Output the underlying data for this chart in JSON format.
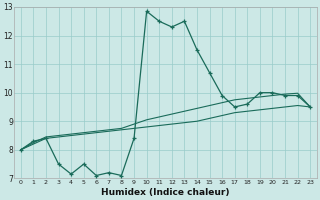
{
  "xlabel": "Humidex (Indice chaleur)",
  "background_color": "#cce8e6",
  "grid_color": "#99ccca",
  "line_color": "#1a6b5a",
  "xlim": [
    -0.5,
    23.5
  ],
  "ylim": [
    7,
    13
  ],
  "xticks": [
    0,
    1,
    2,
    3,
    4,
    5,
    6,
    7,
    8,
    9,
    10,
    11,
    12,
    13,
    14,
    15,
    16,
    17,
    18,
    19,
    20,
    21,
    22,
    23
  ],
  "yticks": [
    7,
    8,
    9,
    10,
    11,
    12,
    13
  ],
  "line1_x": [
    0,
    1,
    2,
    3,
    4,
    5,
    6,
    7,
    8,
    9,
    10,
    11,
    12,
    13,
    14,
    15,
    16,
    17,
    18,
    19,
    20,
    21,
    22,
    23
  ],
  "line1_y": [
    8.0,
    8.2,
    8.4,
    8.45,
    8.5,
    8.55,
    8.6,
    8.65,
    8.7,
    8.75,
    8.8,
    8.85,
    8.9,
    8.95,
    9.0,
    9.1,
    9.2,
    9.3,
    9.35,
    9.4,
    9.45,
    9.5,
    9.55,
    9.5
  ],
  "line2_x": [
    0,
    1,
    2,
    3,
    4,
    5,
    6,
    7,
    8,
    9,
    10,
    11,
    12,
    13,
    14,
    15,
    16,
    17,
    18,
    19,
    20,
    21,
    22,
    23
  ],
  "line2_y": [
    8.0,
    8.25,
    8.45,
    8.5,
    8.55,
    8.6,
    8.65,
    8.7,
    8.75,
    8.9,
    9.05,
    9.15,
    9.25,
    9.35,
    9.45,
    9.55,
    9.65,
    9.75,
    9.8,
    9.85,
    9.9,
    9.95,
    9.98,
    9.5
  ],
  "curve_x": [
    0,
    1,
    2,
    3,
    4,
    5,
    6,
    7,
    8,
    9,
    10,
    11,
    12,
    13,
    14,
    15,
    16,
    17,
    18,
    19,
    20,
    21,
    22,
    23
  ],
  "curve_y": [
    8.0,
    8.3,
    8.4,
    7.5,
    7.15,
    7.5,
    7.1,
    7.2,
    7.1,
    8.4,
    12.85,
    12.5,
    12.3,
    12.5,
    11.5,
    10.7,
    9.9,
    9.5,
    9.6,
    10.0,
    10.0,
    9.9,
    9.9,
    9.5
  ]
}
